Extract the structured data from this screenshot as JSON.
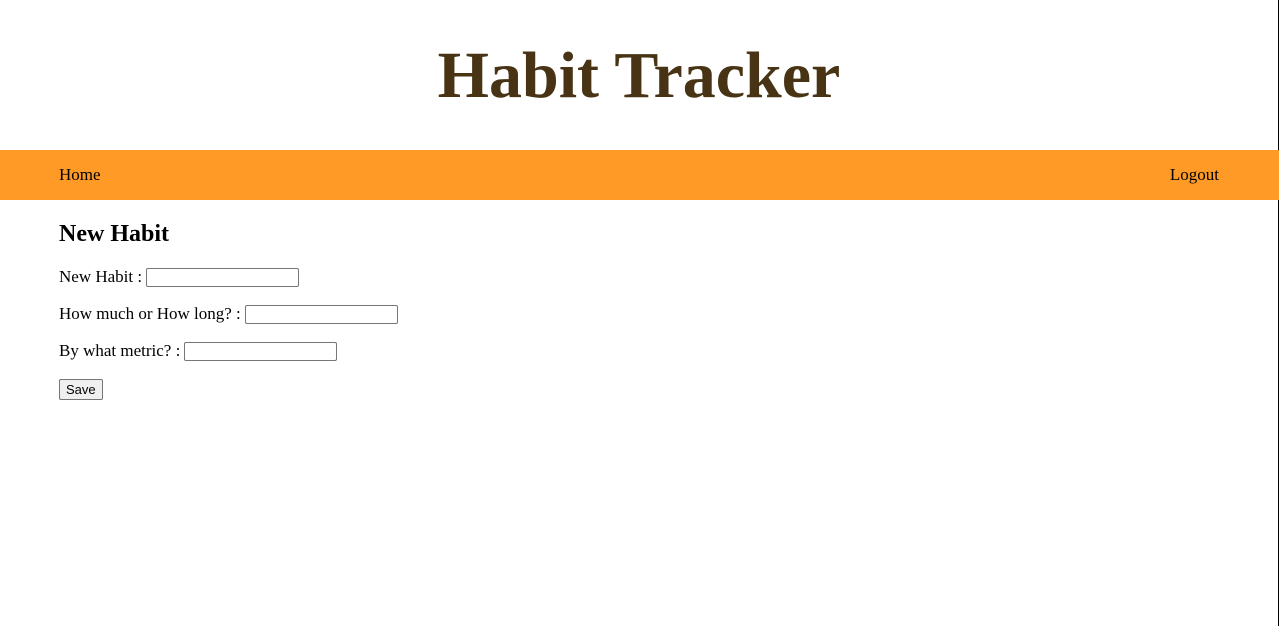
{
  "header": {
    "title": "Habit Tracker"
  },
  "nav": {
    "home_label": "Home",
    "logout_label": "Logout"
  },
  "main": {
    "heading": "New Habit",
    "form": {
      "habit_label": "New Habit :",
      "habit_value": "",
      "amount_label": "How much or How long? :",
      "amount_value": "",
      "metric_label": "By what metric? :",
      "metric_value": "",
      "save_label": "Save"
    }
  },
  "colors": {
    "title": "#483414",
    "navbar": "#ff9a27"
  }
}
